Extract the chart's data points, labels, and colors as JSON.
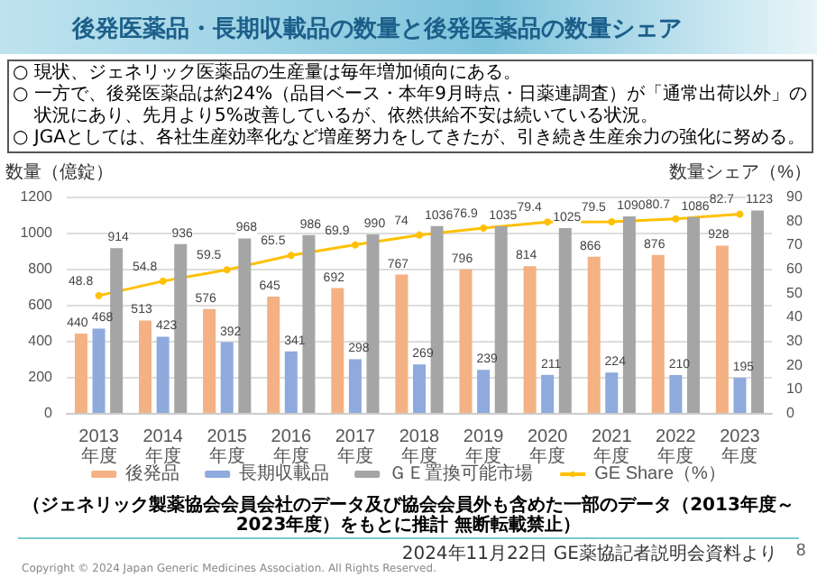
{
  "chart_data": {
    "type": "bar",
    "title": "後発医薬品・長期収載品の数量と後発医薬品の数量シェア",
    "ylabel": "数量（億錠）",
    "y2label": "数量シェア（%）",
    "annotations": [
      "○ 現状、ジェネリック医薬品の生産量は毎年増加傾向にある。",
      "○ 一方で、後発医薬品は約24%（品目ベース・本年9月時点・日薬連調査）が「通常出荷以外」の状況にあり、先月より5%改善しているが、依然供給不安は続いている状況。",
      "○ JGAとしては、各社生産効率化など増産努力をしてきたが、引き続き生産余力の強化に努める。",
      "（ジェネリック製薬協会会員会社のデータ及び協会会員外も含めた一部のデータ（2013年度～2023年度）をもとに推計 無断転載禁止）",
      "Copyright © 2024 Japan Generic Medicines Association. All Rights Reserved.",
      "2024年11月22日 GE薬協記者説明会資料より",
      "8"
    ],
    "categories": [
      "2013年度",
      "2014年度",
      "2015年度",
      "2016年度",
      "2017年度",
      "2018年度",
      "2019年度",
      "2020年度",
      "2021年度",
      "2022年度",
      "2023年度"
    ],
    "series": [
      {
        "name": "後発品",
        "color": "#f4b183",
        "values": [
          440,
          513,
          576,
          645,
          692,
          767,
          796,
          814,
          866,
          876,
          928
        ]
      },
      {
        "name": "長期収載品",
        "color": "#8faadc",
        "values": [
          468,
          423,
          392,
          341,
          298,
          269,
          239,
          211,
          224,
          210,
          195
        ]
      },
      {
        "name": "ＧＥ置換可能市場",
        "color": "#a5a5a5",
        "values": [
          914,
          936,
          968,
          986,
          990,
          1036,
          1035,
          1025,
          1090,
          1086,
          1123
        ]
      },
      {
        "name": "GE Share（%）",
        "type": "line",
        "axis": "y2",
        "color": "#ffc000",
        "values": [
          48.8,
          54.8,
          59.5,
          65.5,
          69.9,
          74,
          76.9,
          79.4,
          79.5,
          80.7,
          82.7
        ]
      }
    ],
    "ylim": [
      0,
      1200
    ],
    "yticks": [
      0,
      200,
      400,
      600,
      800,
      1000,
      1200
    ],
    "y2lim": [
      0,
      90
    ],
    "y2ticks": [
      0,
      10,
      20,
      30,
      40,
      50,
      60,
      70,
      80,
      90
    ],
    "grid": "y",
    "legend": "bottom",
    "marker": "circle",
    "data_labels": true
  }
}
